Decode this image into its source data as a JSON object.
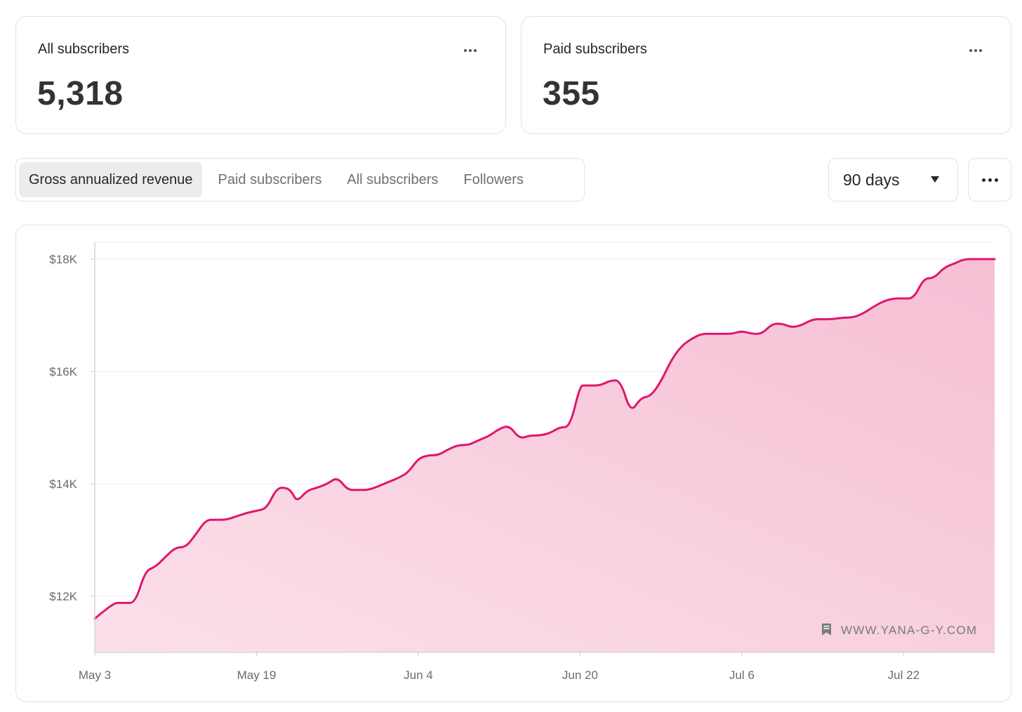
{
  "cards": [
    {
      "label": "All subscribers",
      "value": "5,318"
    },
    {
      "label": "Paid subscribers",
      "value": "355"
    }
  ],
  "tabs": [
    {
      "label": "Gross annualized revenue",
      "active": true
    },
    {
      "label": "Paid subscribers",
      "active": false
    },
    {
      "label": "All subscribers",
      "active": false
    },
    {
      "label": "Followers",
      "active": false
    }
  ],
  "range": {
    "selected": "90 days"
  },
  "icons": {
    "card_more": "ellipsis-icon",
    "range_caret": "caret-down-icon",
    "toolbar_more": "ellipsis-icon",
    "watermark": "bookmark-icon"
  },
  "watermark": "WWW.YANA-G-Y.COM",
  "colors": {
    "line": "#e0166e",
    "fill": "#f7c6da"
  },
  "chart_data": {
    "type": "area",
    "title": "",
    "xlabel": "",
    "ylabel": "",
    "x_ticks": [
      "May 3",
      "May 19",
      "Jun 4",
      "Jun 20",
      "Jul 6",
      "Jul 22"
    ],
    "y_ticks": [
      "$12K",
      "$14K",
      "$16K",
      "$18K"
    ],
    "xlim_days": [
      0,
      89
    ],
    "ylim": [
      11000,
      18300
    ],
    "grid": true,
    "legend": "none",
    "series": [
      {
        "x_days": [
          0,
          1,
          2,
          2.5,
          3,
          4,
          5,
          6,
          7,
          8,
          9,
          10,
          11,
          12,
          13,
          14,
          15,
          16,
          17,
          18,
          19,
          19.5,
          20,
          21,
          22,
          23,
          24,
          25,
          26,
          27,
          28,
          29,
          30,
          31,
          32,
          33,
          34,
          35,
          36,
          37,
          38,
          39,
          40,
          41,
          42,
          43,
          44,
          45,
          46,
          47,
          48,
          48.5,
          49,
          50,
          51,
          52,
          53,
          54,
          55,
          56,
          57,
          58,
          59,
          60,
          61,
          62,
          63,
          64,
          65,
          66,
          67,
          68,
          69,
          70,
          71,
          72,
          73,
          74,
          75,
          76,
          77,
          78,
          79,
          80,
          81,
          82,
          83,
          84,
          85,
          86,
          87,
          89
        ],
        "values": [
          11600,
          11750,
          11880,
          11880,
          11880,
          11880,
          12450,
          12520,
          12700,
          12870,
          12870,
          13100,
          13360,
          13360,
          13360,
          13420,
          13480,
          13520,
          13560,
          13930,
          13930,
          13850,
          13680,
          13880,
          13930,
          14000,
          14120,
          13890,
          13890,
          13890,
          13950,
          14030,
          14100,
          14200,
          14450,
          14510,
          14510,
          14620,
          14690,
          14690,
          14780,
          14850,
          14980,
          15040,
          14800,
          14860,
          14860,
          14900,
          15010,
          15010,
          15750,
          15750,
          15750,
          15750,
          15840,
          15840,
          15260,
          15530,
          15560,
          15820,
          16200,
          16450,
          16580,
          16670,
          16670,
          16670,
          16670,
          16720,
          16670,
          16670,
          16850,
          16850,
          16780,
          16830,
          16930,
          16930,
          16930,
          16960,
          16960,
          17030,
          17150,
          17250,
          17300,
          17300,
          17300,
          17660,
          17660,
          17850,
          17920,
          18000,
          18000,
          18000
        ]
      }
    ]
  }
}
